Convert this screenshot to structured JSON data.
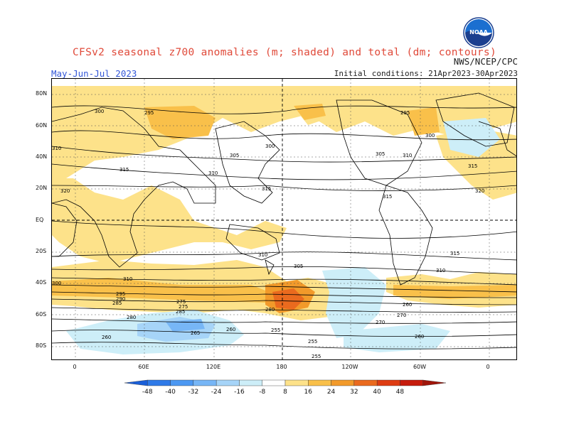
{
  "header": {
    "title": "CFSv2 seasonal z700 anomalies (m; shaded) and total (dm; contours)",
    "agency": "NWS/NCEP/CPC",
    "season": "May-Jun-Jul 2023",
    "initial_conditions": "Initial conditions: 21Apr2023-30Apr2023",
    "logo_text": "NOAA"
  },
  "axes": {
    "lat_labels": [
      "80N",
      "60N",
      "40N",
      "20N",
      "EQ",
      "20S",
      "40S",
      "60S",
      "80S"
    ],
    "lon_labels": [
      "0",
      "60E",
      "120E",
      "180",
      "120W",
      "60W",
      "0"
    ]
  },
  "colorbar": {
    "labels": [
      "-48",
      "-40",
      "-32",
      "-24",
      "-16",
      "-8",
      "8",
      "16",
      "24",
      "32",
      "40",
      "48"
    ],
    "colors": [
      "#1a5fd8",
      "#2f7ae8",
      "#4c98f2",
      "#77b6f6",
      "#a6d4f8",
      "#cdeef8",
      "#ffffff",
      "#fde28a",
      "#f9c04a",
      "#f29a2a",
      "#ea6a1e",
      "#de3c12",
      "#c61c0c",
      "#a0150a"
    ]
  },
  "contours": {
    "labels": [
      "300",
      "295",
      "310",
      "315",
      "320",
      "305",
      "300",
      "310",
      "315",
      "305",
      "295",
      "300",
      "310",
      "315",
      "320",
      "315",
      "310",
      "305",
      "310",
      "315",
      "300",
      "310",
      "295",
      "290",
      "285",
      "280",
      "275",
      "270",
      "265",
      "260",
      "255",
      "280",
      "275",
      "285",
      "260",
      "255",
      "260",
      "270",
      "255",
      "260"
    ]
  },
  "colors": {
    "frame": "#000000",
    "coast": "#000000",
    "grid": "#000000",
    "contour": "#000000",
    "title": "#e04a3a",
    "season": "#3458d8"
  }
}
